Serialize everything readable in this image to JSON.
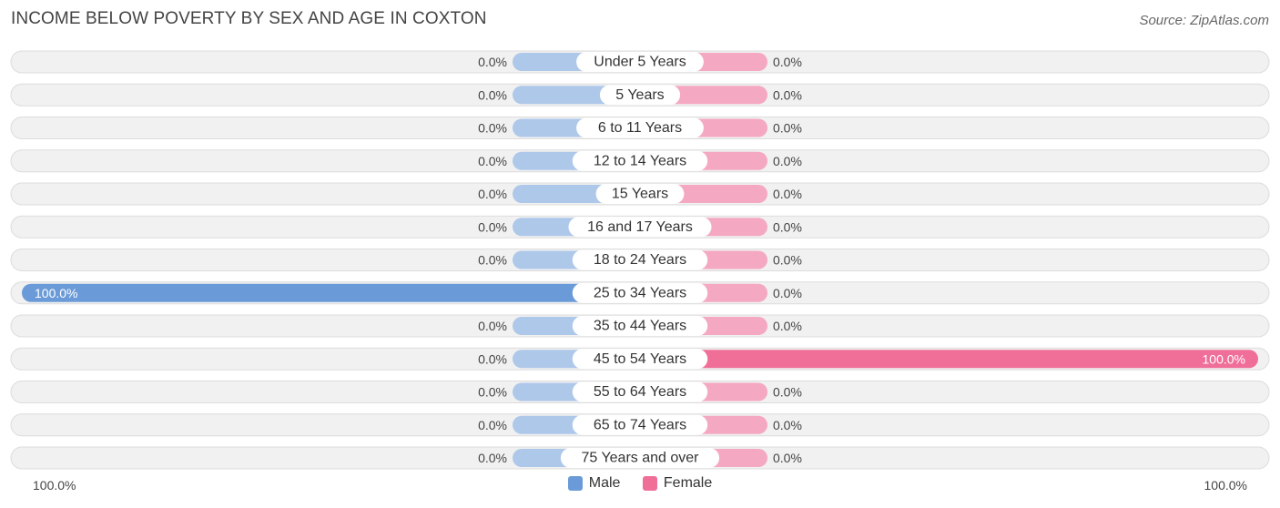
{
  "title": "INCOME BELOW POVERTY BY SEX AND AGE IN COXTON",
  "source": "Source: ZipAtlas.com",
  "colors": {
    "male_light": "#aec8ea",
    "male_strong": "#6a9bd8",
    "female_light": "#f5a8c1",
    "female_strong": "#ef6f99",
    "row_bg": "#f1f1f1",
    "row_border": "#dcdcdc"
  },
  "legend": {
    "male": "Male",
    "female": "Female"
  },
  "axis": {
    "left_label": "100.0%",
    "right_label": "100.0%"
  },
  "chart_data": {
    "type": "bar",
    "orientation": "horizontal-diverging",
    "title": "INCOME BELOW POVERTY BY SEX AND AGE IN COXTON",
    "categories": [
      "Under 5 Years",
      "5 Years",
      "6 to 11 Years",
      "12 to 14 Years",
      "15 Years",
      "16 and 17 Years",
      "18 to 24 Years",
      "25 to 34 Years",
      "35 to 44 Years",
      "45 to 54 Years",
      "55 to 64 Years",
      "65 to 74 Years",
      "75 Years and over"
    ],
    "series": [
      {
        "name": "Male",
        "values": [
          0,
          0,
          0,
          0,
          0,
          0,
          0,
          100,
          0,
          0,
          0,
          0,
          0
        ],
        "labels": [
          "0.0%",
          "0.0%",
          "0.0%",
          "0.0%",
          "0.0%",
          "0.0%",
          "0.0%",
          "100.0%",
          "0.0%",
          "0.0%",
          "0.0%",
          "0.0%",
          "0.0%"
        ]
      },
      {
        "name": "Female",
        "values": [
          0,
          0,
          0,
          0,
          0,
          0,
          0,
          0,
          0,
          100,
          0,
          0,
          0
        ],
        "labels": [
          "0.0%",
          "0.0%",
          "0.0%",
          "0.0%",
          "0.0%",
          "0.0%",
          "0.0%",
          "0.0%",
          "0.0%",
          "100.0%",
          "0.0%",
          "0.0%",
          "0.0%"
        ]
      }
    ],
    "xlim": [
      0,
      100
    ],
    "unit": "%",
    "legend_position": "bottom-center"
  }
}
